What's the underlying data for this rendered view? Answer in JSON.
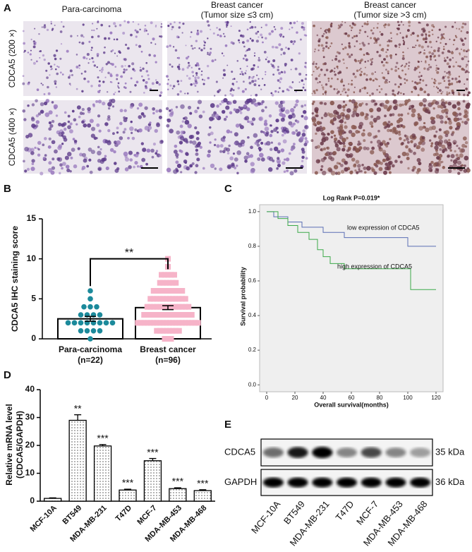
{
  "panel_a": {
    "label": "A",
    "columns": [
      [
        "Para-carcinoma"
      ],
      [
        "Breast cancer",
        "(Tumor size ≤3 cm)"
      ],
      [
        "Breast cancer",
        "(Tumor size >3 cm)"
      ]
    ],
    "rows": [
      "CDCA5 (200 ×)",
      "CDCA5 (400 ×)"
    ]
  },
  "chart_data": [
    {
      "panel": "B",
      "type": "dot-bar",
      "ylabel": "CDCA5 IHC staining score",
      "categories": [
        "Para-carcinoma",
        "Breast cancer"
      ],
      "n_labels": [
        "(n=22)",
        "(n=96)"
      ],
      "values": [
        2.5,
        3.9
      ],
      "errors": [
        0.3,
        0.25
      ],
      "points": [
        [
          0,
          1,
          1,
          1,
          1,
          2,
          2,
          2,
          2,
          2,
          2,
          2,
          2,
          3,
          3,
          3,
          3,
          4,
          4,
          4,
          5,
          6
        ],
        [
          0,
          0,
          0,
          1,
          1,
          1,
          1,
          1,
          1,
          1,
          1,
          2,
          2,
          2,
          2,
          2,
          2,
          2,
          2,
          2,
          2,
          2,
          2,
          2,
          2,
          2,
          2,
          2,
          2,
          2,
          2,
          3,
          3,
          3,
          3,
          3,
          3,
          3,
          3,
          3,
          3,
          3,
          3,
          3,
          3,
          3,
          3,
          4,
          4,
          4,
          4,
          4,
          4,
          4,
          4,
          4,
          4,
          4,
          4,
          4,
          4,
          5,
          5,
          5,
          5,
          5,
          5,
          5,
          5,
          5,
          5,
          5,
          5,
          6,
          6,
          6,
          6,
          6,
          6,
          6,
          6,
          6,
          6,
          7,
          7,
          7,
          7,
          7,
          7,
          8,
          8,
          8,
          8,
          8,
          9,
          10
        ]
      ],
      "colors": [
        "#1c8a9b",
        "#f6b3c8"
      ],
      "annotation": "**",
      "ylim": [
        0,
        15
      ],
      "yticks": [
        0,
        5,
        10,
        15
      ]
    },
    {
      "panel": "C",
      "type": "line",
      "title": "Log Rank P=0.019*",
      "xlabel": "Overall survival(months)",
      "ylabel": "Survival probability",
      "series": [
        {
          "name": "low expression of CDCA5",
          "color": "#5b6fb5",
          "x": [
            0,
            5,
            15,
            25,
            40,
            55,
            100,
            120
          ],
          "values": [
            1,
            0.97,
            0.94,
            0.91,
            0.88,
            0.85,
            0.8,
            0.8
          ]
        },
        {
          "name": "high expression of CDCA5",
          "color": "#3caa4a",
          "x": [
            0,
            8,
            15,
            22,
            30,
            36,
            40,
            45,
            55,
            100,
            102,
            120
          ],
          "values": [
            1,
            0.96,
            0.92,
            0.88,
            0.84,
            0.78,
            0.74,
            0.7,
            0.67,
            0.67,
            0.55,
            0.55
          ]
        }
      ],
      "xlim": [
        -5,
        125
      ],
      "xticks": [
        0,
        20,
        40,
        60,
        80,
        100,
        120
      ],
      "ylim": [
        -0.04,
        1.04
      ],
      "yticks": [
        {
          "value": 0,
          "label": "0.0"
        },
        0.2,
        0.4,
        0.6,
        0.8,
        {
          "value": 1,
          "label": "1.0"
        }
      ]
    },
    {
      "panel": "D",
      "type": "bar",
      "ylabel": [
        "Relative mRNA level",
        "(CDCA5/GAPDH)"
      ],
      "categories": [
        "MCF-10A",
        "BT549",
        "MDA-MB-231",
        "T47D",
        "MCF-7",
        "MDA-MB-453",
        "MDA-MB-468"
      ],
      "values": [
        1,
        29,
        19.8,
        4,
        14.5,
        4.5,
        3.8
      ],
      "errors": [
        0.2,
        2,
        0.5,
        0.3,
        0.8,
        0.3,
        0.3
      ],
      "significance": [
        null,
        "**",
        "***",
        "***",
        "***",
        "***",
        "***"
      ],
      "ylim": [
        0,
        40
      ],
      "yticks": [
        0,
        10,
        20,
        30,
        40
      ]
    }
  ],
  "panel_e": {
    "label": "E",
    "lanes": [
      "MCF-10A",
      "BT549",
      "MDA-MB-231",
      "T47D",
      "MCF-7",
      "MDA-MB-453",
      "MDA-MB-468"
    ],
    "rows": [
      "CDCA5",
      "GAPDH"
    ],
    "sizes": [
      "35 kDa",
      "36 kDa"
    ]
  }
}
